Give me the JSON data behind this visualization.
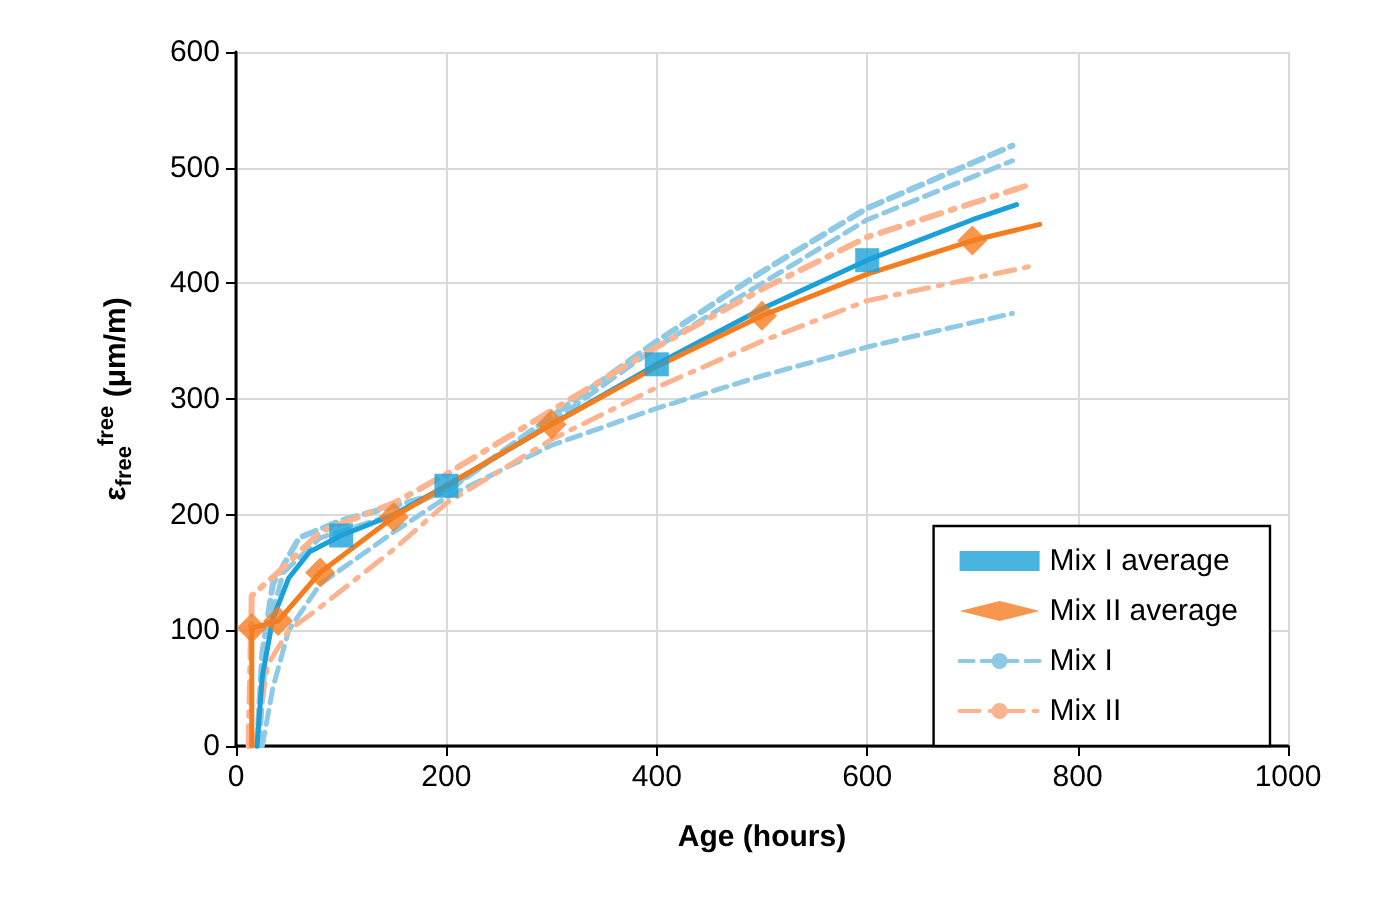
{
  "chart_data": {
    "type": "line",
    "xlabel": "Age (hours)",
    "ylabel": "ε$_{free}$$^{free}$ (μm/m)",
    "xlim": [
      0,
      1000
    ],
    "xticks": [
      0,
      200,
      400,
      600,
      800,
      1000
    ],
    "ylim": [
      0,
      600
    ],
    "yticks": [
      0,
      100,
      200,
      300,
      400,
      500,
      600
    ],
    "grid": true,
    "legend": "bottom right",
    "series": [
      {
        "name": "Mix I average",
        "type": "scatter",
        "marker": "square",
        "color": "#1ba1d8",
        "x": [
          100,
          200,
          400,
          600
        ],
        "values": [
          182,
          225,
          330,
          420
        ]
      },
      {
        "name": "Mix II average",
        "type": "scatter",
        "marker": "diamond",
        "color": "#f47d20",
        "x": [
          15,
          40,
          80,
          150,
          300,
          500,
          700
        ],
        "values": [
          102,
          108,
          150,
          198,
          278,
          372,
          437
        ]
      },
      {
        "name": "Mix I",
        "line_style": "dashed",
        "color": "#8ecae6",
        "x": [
          20,
          25,
          35,
          60,
          100,
          200,
          300,
          400,
          500,
          600,
          738
        ],
        "values": [
          0,
          80,
          140,
          180,
          195,
          220,
          285,
          350,
          410,
          465,
          519
        ]
      },
      {
        "line_style": "dashed",
        "color": "#8ecae6",
        "x": [
          22,
          30,
          45,
          80,
          150,
          200,
          300,
          400,
          500,
          600,
          738
        ],
        "values": [
          0,
          100,
          150,
          180,
          200,
          222,
          280,
          345,
          400,
          455,
          506
        ]
      },
      {
        "line_style": "dashed",
        "color": "#8ecae6",
        "x": [
          25,
          35,
          50,
          80,
          150,
          200,
          300,
          400,
          500,
          600,
          738
        ],
        "values": [
          0,
          50,
          100,
          140,
          185,
          215,
          260,
          292,
          320,
          345,
          374
        ]
      },
      {
        "name": "Mix II",
        "line_style": "dashdot",
        "color": "#fbb48f",
        "x": [
          12,
          15,
          40,
          80,
          150,
          200,
          300,
          400,
          500,
          600,
          757
        ],
        "values": [
          0,
          130,
          150,
          185,
          210,
          235,
          290,
          345,
          395,
          440,
          486
        ]
      },
      {
        "line_style": "dashdot",
        "color": "#fbb48f",
        "x": [
          18,
          30,
          50,
          80,
          150,
          200,
          300,
          400,
          500,
          600,
          757
        ],
        "values": [
          0,
          70,
          100,
          120,
          170,
          210,
          265,
          310,
          350,
          385,
          415
        ]
      },
      {
        "line_style": "solid",
        "color": "#1ba1d8",
        "x": [
          20,
          25,
          35,
          50,
          70,
          100,
          150,
          200,
          300,
          400,
          500,
          600,
          700,
          742
        ],
        "values": [
          0,
          60,
          110,
          145,
          168,
          182,
          200,
          225,
          278,
          330,
          378,
          420,
          455,
          468
        ]
      },
      {
        "line_style": "solid",
        "color": "#f47d20",
        "x": [
          15,
          15,
          40,
          80,
          150,
          200,
          300,
          400,
          500,
          600,
          700,
          764
        ],
        "values": [
          0,
          102,
          108,
          150,
          198,
          225,
          278,
          328,
          372,
          408,
          437,
          451
        ]
      }
    ]
  }
}
